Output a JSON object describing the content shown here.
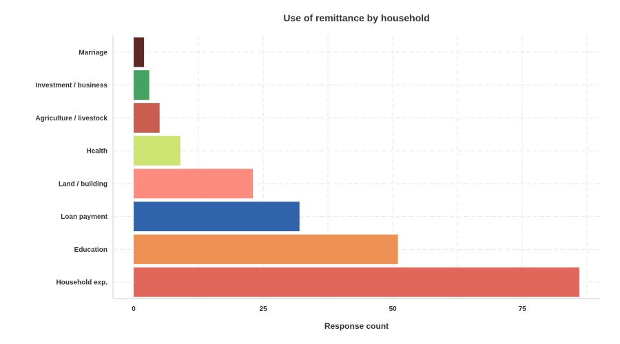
{
  "chart_data": {
    "type": "bar",
    "orientation": "horizontal",
    "title": "Use of remittance by household",
    "xlabel": "Response count",
    "ylabel": "",
    "categories": [
      "Household exp.",
      "Education",
      "Loan payment",
      "Land / building",
      "Health",
      "Agriculture / livestock",
      "Investment / business",
      "Marriage"
    ],
    "values": [
      86,
      51,
      32,
      23,
      9,
      5,
      3,
      2
    ],
    "colors": [
      "#e06759",
      "#ec9153",
      "#3264ab",
      "#fc8d7e",
      "#cde372",
      "#c95d4f",
      "#43a35f",
      "#5c2a22"
    ],
    "xlim": [
      -4,
      90
    ],
    "xticks": [
      0,
      25,
      50,
      75
    ],
    "grid": true,
    "legend": "none"
  }
}
